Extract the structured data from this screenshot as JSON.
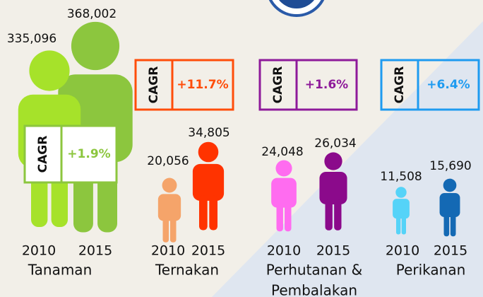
{
  "sectors": [
    {
      "name": [
        "Tanaman"
      ],
      "cagr_title": "CAGR",
      "cagr": "+1.9%",
      "figures": [
        {
          "year": "2010",
          "value": "335,096"
        },
        {
          "year": "2015",
          "value": "368,002"
        }
      ]
    },
    {
      "name": [
        "Ternakan"
      ],
      "cagr_title": "CAGR",
      "cagr": "+11.7%",
      "figures": [
        {
          "year": "2010",
          "value": "20,056"
        },
        {
          "year": "2015",
          "value": "34,805"
        }
      ]
    },
    {
      "name": [
        "Perhutanan &",
        "Pembalakan"
      ],
      "cagr_title": "CAGR",
      "cagr": "+1.6%",
      "figures": [
        {
          "year": "2010",
          "value": "24,048"
        },
        {
          "year": "2015",
          "value": "26,034"
        }
      ]
    },
    {
      "name": [
        "Perikanan"
      ],
      "cagr_title": "CAGR",
      "cagr": "+6.4%",
      "figures": [
        {
          "year": "2010",
          "value": "11,508"
        },
        {
          "year": "2015",
          "value": "15,690"
        }
      ]
    }
  ]
}
